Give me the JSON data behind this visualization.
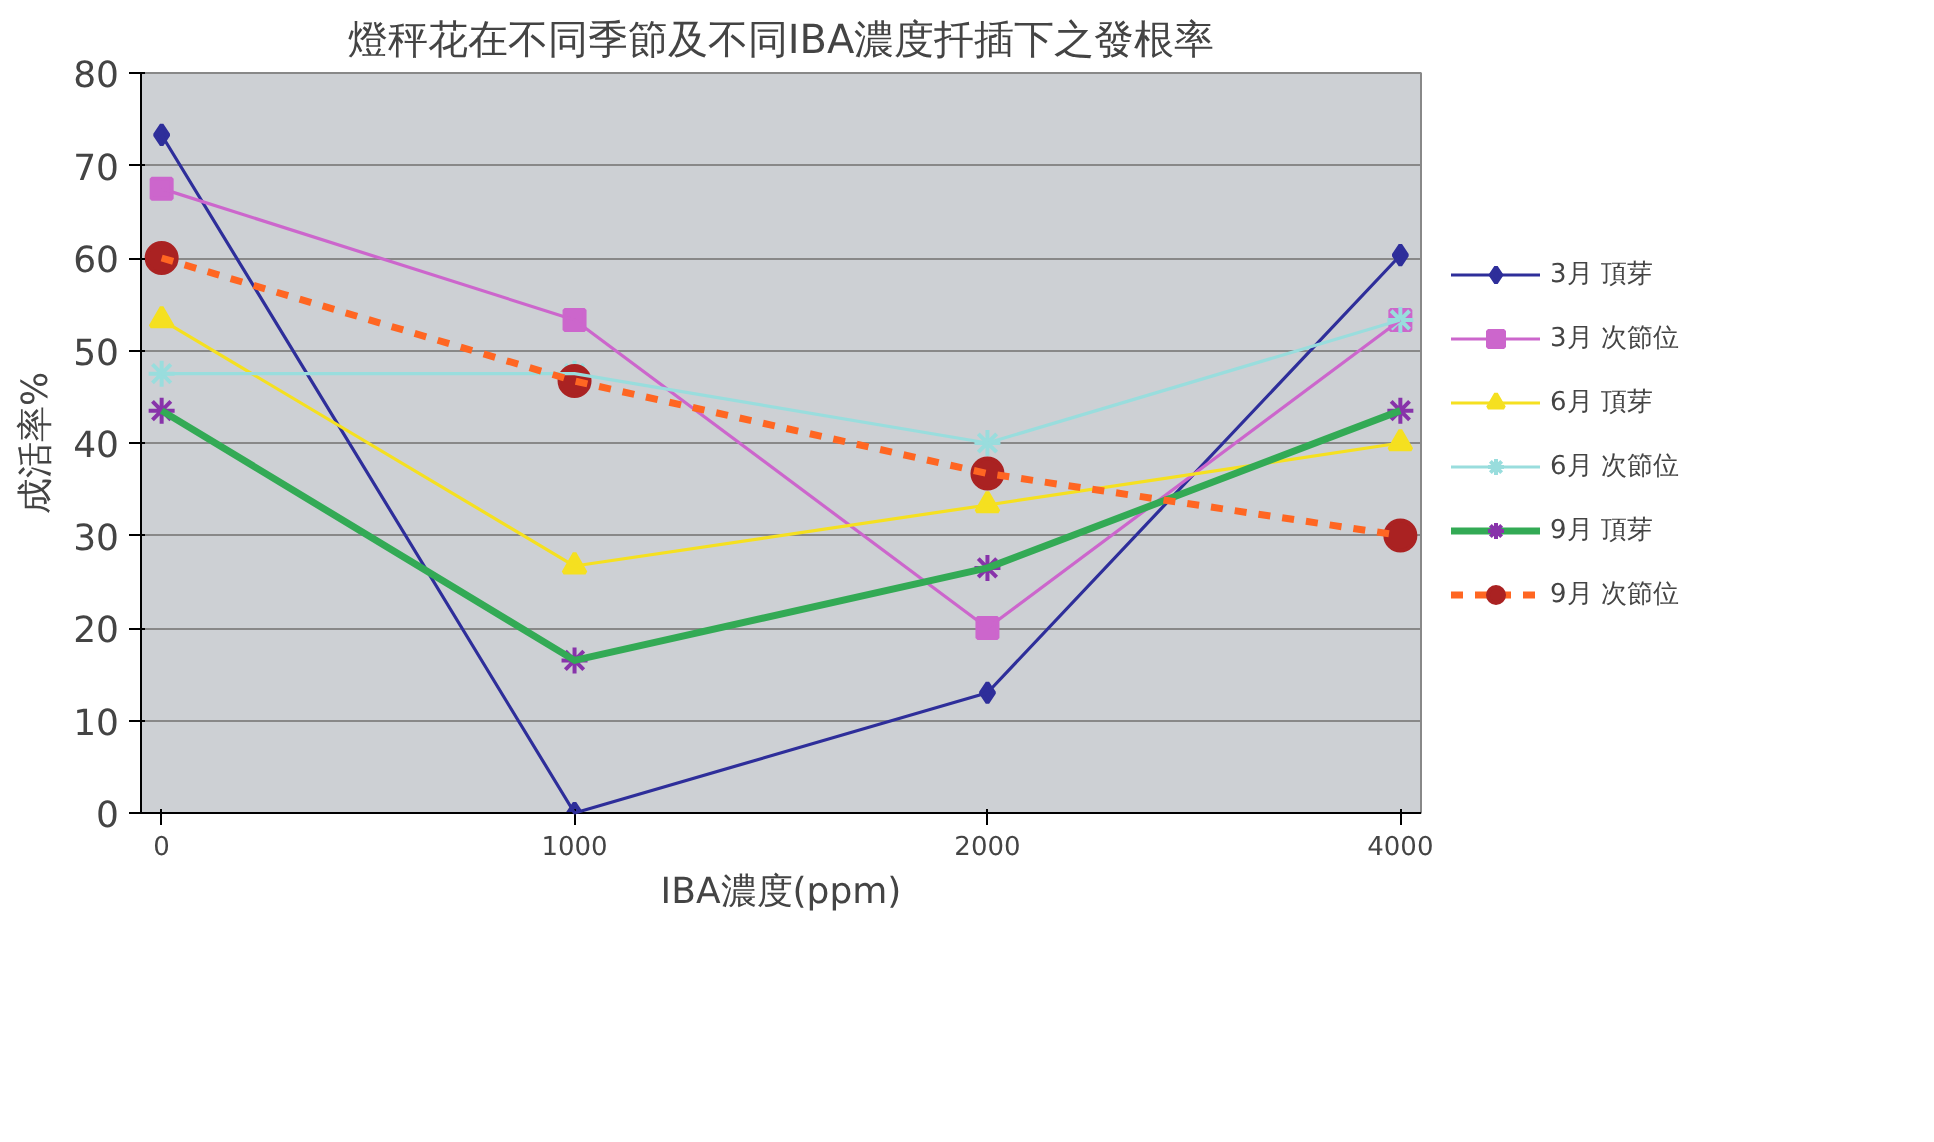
{
  "chart_data": {
    "type": "line",
    "title": "燈秤花在不同季節及不同IBA濃度扦插下之發根率",
    "xlabel": "IBA濃度(ppm)",
    "ylabel": "成活率%",
    "categories": [
      "0",
      "1000",
      "2000",
      "4000"
    ],
    "ylim": [
      0,
      80
    ],
    "yticks": [
      0,
      10,
      20,
      30,
      40,
      50,
      60,
      70,
      80
    ],
    "grid": "y",
    "legend": "right",
    "series": [
      {
        "name": "3月 頂芽",
        "color": "#2e2e9a",
        "marker": "diamond",
        "values": [
          73.3,
          0,
          13,
          60.3
        ]
      },
      {
        "name": "3月 次節位",
        "color": "#cc66cc",
        "marker": "square",
        "values": [
          67.5,
          53.3,
          20,
          53.3
        ]
      },
      {
        "name": "6月 頂芽",
        "color": "#f5e020",
        "marker": "triangle",
        "values": [
          53.3,
          26.7,
          33.3,
          40
        ]
      },
      {
        "name": "6月 次節位",
        "color": "#99dddd",
        "marker": "cross",
        "values": [
          47.5,
          47.5,
          40,
          53.3
        ]
      },
      {
        "name": "9月 頂芽",
        "color": "#33aa55",
        "marker": "cross",
        "colors": [
          "#8833aa",
          "#8833aa",
          "#8833aa",
          "#8833aa"
        ],
        "values": [
          43.5,
          16.5,
          26.5,
          43.5
        ]
      },
      {
        "name": "9月 次節位",
        "color": "#ff6622",
        "marker": "circle",
        "colors": [
          "#aa2222",
          "#aa2222",
          "#aa2222",
          "#aa2222"
        ],
        "line_style": "dashed",
        "values": [
          60,
          46.7,
          36.7,
          30
        ]
      }
    ]
  }
}
